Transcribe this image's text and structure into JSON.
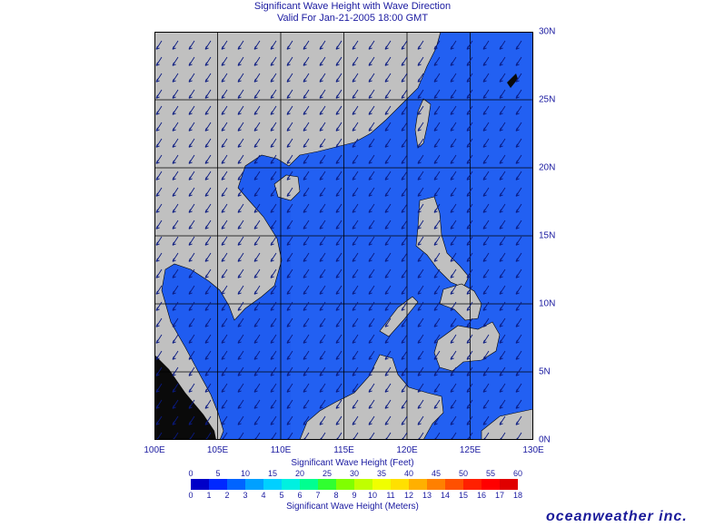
{
  "title_line1": "Significant Wave Height with Wave Direction",
  "title_line2": "Valid For Jan-21-2005 18:00 GMT",
  "map": {
    "lon_range": [
      100,
      130
    ],
    "lat_range": [
      0,
      30
    ],
    "x_ticks": [
      "100E",
      "105E",
      "110E",
      "115E",
      "120E",
      "125E",
      "130E"
    ],
    "y_ticks": [
      "0N",
      "5N",
      "10N",
      "15N",
      "20N",
      "25N",
      "30N"
    ],
    "colors": {
      "land": "#c0c0c0",
      "sea": "#1f5cf0",
      "sea_deep": "#2a62f5",
      "grid": "#000000",
      "arrow": "#0a1a80",
      "coast_dark": "#0a0a0a"
    }
  },
  "colorbar": {
    "feet_label": "Significant Wave Height (Feet)",
    "meters_label": "Significant Wave Height (Meters)",
    "feet_ticks": [
      "0",
      "5",
      "10",
      "15",
      "20",
      "25",
      "30",
      "35",
      "40",
      "45",
      "50",
      "55",
      "60"
    ],
    "meter_ticks": [
      "0",
      "1",
      "2",
      "3",
      "4",
      "5",
      "6",
      "7",
      "8",
      "9",
      "10",
      "11",
      "12",
      "13",
      "14",
      "15",
      "16",
      "17",
      "18"
    ],
    "colors": [
      "#0000c8",
      "#0028ff",
      "#0064ff",
      "#00a0ff",
      "#00d0ff",
      "#00f0e0",
      "#00ff90",
      "#30ff30",
      "#80ff00",
      "#c0ff00",
      "#f0ff00",
      "#ffe000",
      "#ffb000",
      "#ff8000",
      "#ff5000",
      "#ff2000",
      "#ff0000",
      "#e00000"
    ]
  },
  "brand": "oceanweather inc."
}
